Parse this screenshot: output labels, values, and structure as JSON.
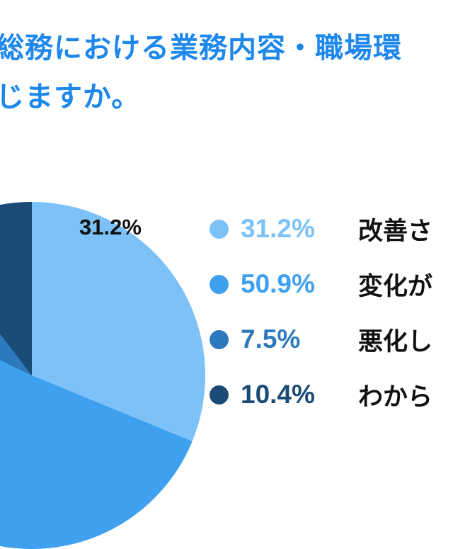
{
  "chart_data": {
    "type": "pie",
    "title_line1": "総務における業務内容・職場環",
    "title_line2": "じますか。",
    "title_color": "#1d87ec",
    "slices": [
      {
        "label": "改善さ",
        "percent": "31.2%",
        "value": 31.2,
        "color": "#7cc2f8"
      },
      {
        "label": "変化が",
        "percent": "50.9%",
        "value": 50.9,
        "color": "#3fa0ef"
      },
      {
        "label": "悪化し",
        "percent": "7.5%",
        "value": 7.5,
        "color": "#2d79bd"
      },
      {
        "label": "わから",
        "percent": "10.4%",
        "value": 10.4,
        "color": "#1a4b75"
      }
    ],
    "callout": {
      "text": "31.2%",
      "color": "#111111"
    },
    "legend_position": "right",
    "background": "#ffffff"
  }
}
